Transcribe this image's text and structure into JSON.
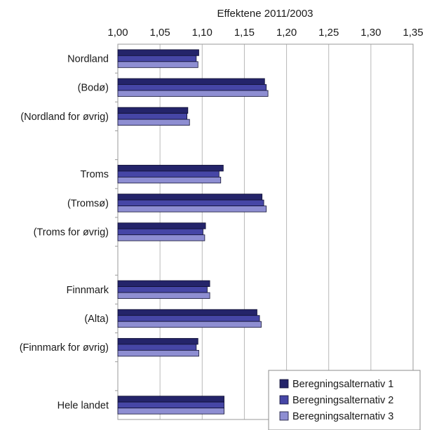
{
  "chart_data": {
    "type": "bar",
    "orientation": "horizontal",
    "xlabel": "Effektene 2011/2003",
    "xlim": [
      1.0,
      1.35
    ],
    "xticks": [
      "1,00",
      "1,05",
      "1,10",
      "1,15",
      "1,20",
      "1,25",
      "1,30",
      "1,35"
    ],
    "tick_values": [
      1.0,
      1.05,
      1.1,
      1.15,
      1.2,
      1.25,
      1.3,
      1.35
    ],
    "grid": true,
    "legend_position": "bottom-right",
    "categories": [
      "Nordland",
      "(Bodø)",
      "(Nordland for øvrig)",
      "",
      "Troms",
      "(Tromsø)",
      "(Troms for øvrig)",
      "",
      "Finnmark",
      "(Alta)",
      "(Finnmark for øvrig)",
      "",
      "Hele landet"
    ],
    "series": [
      {
        "name": "Beregningsalternativ 1",
        "color": "#24246a",
        "values": [
          1.096,
          1.174,
          1.083,
          null,
          1.125,
          1.171,
          1.104,
          null,
          1.109,
          1.165,
          1.095,
          null,
          1.126
        ]
      },
      {
        "name": "Beregningsalternativ 2",
        "color": "#4646a6",
        "values": [
          1.093,
          1.176,
          1.082,
          null,
          1.12,
          1.173,
          1.101,
          null,
          1.106,
          1.168,
          1.093,
          null,
          1.126
        ]
      },
      {
        "name": "Beregningsalternativ 3",
        "color": "#8e8ed2",
        "values": [
          1.095,
          1.178,
          1.085,
          null,
          1.122,
          1.176,
          1.103,
          null,
          1.109,
          1.17,
          1.096,
          null,
          1.126
        ]
      }
    ]
  }
}
